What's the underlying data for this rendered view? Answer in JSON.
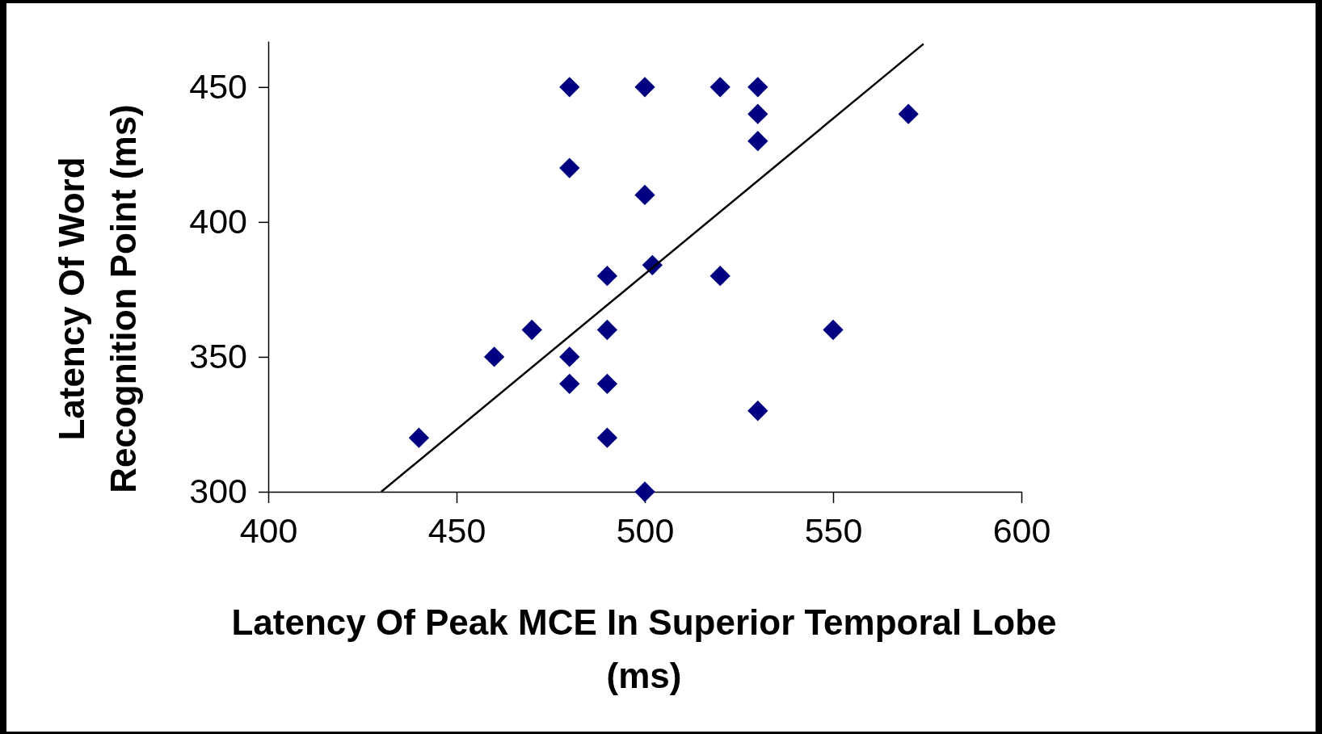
{
  "chart_data": {
    "type": "scatter",
    "xlabel": "Latency Of Peak MCE In Superior Temporal Lobe (ms)",
    "ylabel": "Latency Of Word Recognition Point (ms)",
    "xlim": [
      400,
      600
    ],
    "xticks": [
      400,
      450,
      500,
      550,
      600
    ],
    "ylim": [
      300,
      467
    ],
    "yticks": [
      300,
      350,
      400,
      450
    ],
    "grid": false,
    "marker": "diamond",
    "series": [
      {
        "color": "#000080",
        "x": [
          480,
          500,
          520,
          530,
          530,
          570,
          530,
          480,
          500,
          490,
          502,
          520,
          470,
          490,
          550,
          460,
          480,
          480,
          490,
          530,
          440,
          490,
          500
        ],
        "values": [
          450,
          450,
          450,
          450,
          440,
          440,
          430,
          420,
          410,
          380,
          384,
          380,
          360,
          360,
          360,
          350,
          350,
          340,
          340,
          330,
          320,
          320,
          300
        ]
      },
      {
        "type": "line",
        "color": "#000000",
        "marker": "none",
        "x": [
          430,
          574
        ],
        "values": [
          300,
          466
        ]
      }
    ]
  }
}
